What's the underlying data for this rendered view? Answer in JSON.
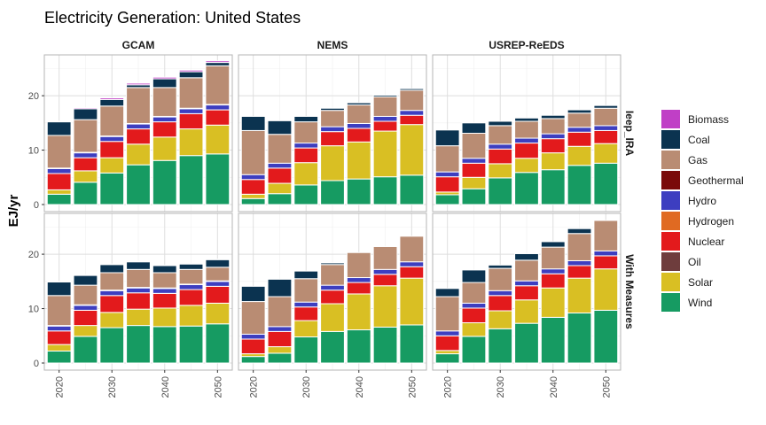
{
  "chart_data": {
    "type": "bar",
    "stacked": true,
    "title": "Electricity Generation: United States",
    "ylabel": "EJ/yr",
    "xlabel": "",
    "x": [
      2020,
      2025,
      2030,
      2035,
      2040,
      2045,
      2050
    ],
    "x_ticks": [
      "2020",
      "2030",
      "2040",
      "2050"
    ],
    "y_ticks": [
      "0",
      "10",
      "20"
    ],
    "ylim": [
      -1.3,
      27.5
    ],
    "columns": [
      "GCAM",
      "NEMS",
      "USREP-ReEDS"
    ],
    "rows": [
      "Ieep_IRA",
      "With Measures"
    ],
    "legend": {
      "position": "right"
    },
    "grid": true,
    "fuels": [
      "Biomass",
      "Coal",
      "Gas",
      "Geothermal",
      "Hydro",
      "Hydrogen",
      "Nuclear",
      "Oil",
      "Solar",
      "Wind"
    ],
    "colors": {
      "Biomass": "#c03fc6",
      "Coal": "#0b3350",
      "Gas": "#b98c73",
      "Geothermal": "#7a0a0a",
      "Hydro": "#3d3ec0",
      "Hydrogen": "#e06a22",
      "Nuclear": "#e31a1c",
      "Oil": "#6e3d3d",
      "Solar": "#d9bf23",
      "Wind": "#169b62"
    },
    "panels": [
      {
        "row": "Ieep_IRA",
        "col": "GCAM",
        "stacks": [
          {
            "Wind": 1.9,
            "Solar": 0.8,
            "Nuclear": 3.0,
            "Hydro": 0.9,
            "Biomass": 0.1,
            "Geothermal": 0.1,
            "Gas": 6.0,
            "Coal": 2.5
          },
          {
            "Wind": 4.1,
            "Solar": 2.1,
            "Nuclear": 2.4,
            "Hydro": 0.9,
            "Biomass": 0.2,
            "Geothermal": 0.1,
            "Gas": 6.0,
            "Coal": 2.0
          },
          {
            "Wind": 5.8,
            "Solar": 2.8,
            "Nuclear": 3.0,
            "Hydro": 0.9,
            "Biomass": 0.3,
            "Geothermal": 0.1,
            "Gas": 5.5,
            "Coal": 1.2
          },
          {
            "Wind": 7.3,
            "Solar": 3.8,
            "Nuclear": 2.8,
            "Hydro": 0.9,
            "Biomass": 0.3,
            "Geothermal": 0.1,
            "Gas": 6.6,
            "Coal": 0.5
          },
          {
            "Wind": 8.1,
            "Solar": 4.3,
            "Nuclear": 2.8,
            "Hydro": 0.9,
            "Biomass": 0.3,
            "Geothermal": 0.1,
            "Gas": 5.3,
            "Coal": 1.6
          },
          {
            "Wind": 9.0,
            "Solar": 4.9,
            "Nuclear": 2.8,
            "Hydro": 0.9,
            "Biomass": 0.3,
            "Geothermal": 0.1,
            "Gas": 5.6,
            "Coal": 1.1
          },
          {
            "Wind": 9.3,
            "Solar": 5.3,
            "Nuclear": 2.8,
            "Hydro": 0.9,
            "Biomass": 0.3,
            "Geothermal": 0.1,
            "Gas": 7.1,
            "Coal": 0.6
          }
        ]
      },
      {
        "row": "Ieep_IRA",
        "col": "NEMS",
        "stacks": [
          {
            "Wind": 1.1,
            "Solar": 0.8,
            "Nuclear": 2.7,
            "Hydro": 0.9,
            "Gas": 8.1,
            "Coal": 2.6
          },
          {
            "Wind": 2.0,
            "Solar": 1.9,
            "Nuclear": 2.8,
            "Hydro": 0.9,
            "Gas": 5.3,
            "Coal": 2.5
          },
          {
            "Wind": 3.6,
            "Solar": 4.1,
            "Nuclear": 2.7,
            "Hydro": 0.9,
            "Gas": 3.9,
            "Coal": 1.0
          },
          {
            "Wind": 4.4,
            "Solar": 6.4,
            "Nuclear": 2.6,
            "Hydro": 0.9,
            "Gas": 3.0,
            "Coal": 0.4
          },
          {
            "Wind": 4.7,
            "Solar": 6.8,
            "Nuclear": 2.5,
            "Hydro": 0.9,
            "Gas": 3.4,
            "Coal": 0.4
          },
          {
            "Wind": 5.1,
            "Solar": 8.4,
            "Nuclear": 1.8,
            "Hydro": 0.9,
            "Gas": 3.6,
            "Coal": 0.3
          },
          {
            "Wind": 5.4,
            "Solar": 9.3,
            "Nuclear": 1.7,
            "Hydro": 0.9,
            "Gas": 3.7,
            "Coal": 0.3
          }
        ]
      },
      {
        "row": "Ieep_IRA",
        "col": "USREP-ReEDS",
        "stacks": [
          {
            "Wind": 1.8,
            "Solar": 0.5,
            "Nuclear": 2.8,
            "Hydro": 0.9,
            "Gas": 4.8,
            "Coal": 2.9
          },
          {
            "Wind": 2.9,
            "Solar": 2.1,
            "Nuclear": 2.6,
            "Hydro": 0.9,
            "Gas": 4.6,
            "Coal": 1.9
          },
          {
            "Wind": 4.9,
            "Solar": 2.6,
            "Nuclear": 2.7,
            "Hydro": 0.9,
            "Gas": 3.4,
            "Coal": 0.8
          },
          {
            "Wind": 5.9,
            "Solar": 2.6,
            "Nuclear": 2.8,
            "Hydro": 0.9,
            "Gas": 3.1,
            "Coal": 0.6
          },
          {
            "Wind": 6.4,
            "Solar": 3.1,
            "Nuclear": 2.6,
            "Hydro": 0.9,
            "Gas": 2.8,
            "Coal": 0.6
          },
          {
            "Wind": 7.2,
            "Solar": 3.5,
            "Nuclear": 2.6,
            "Hydro": 0.9,
            "Gas": 2.6,
            "Coal": 0.6
          },
          {
            "Wind": 7.6,
            "Solar": 3.6,
            "Nuclear": 2.4,
            "Hydro": 0.9,
            "Gas": 3.2,
            "Coal": 0.5
          }
        ]
      },
      {
        "row": "With Measures",
        "col": "GCAM",
        "stacks": [
          {
            "Wind": 2.2,
            "Solar": 1.2,
            "Nuclear": 2.5,
            "Hydro": 0.9,
            "Biomass": 0.1,
            "Geothermal": 0.1,
            "Gas": 5.5,
            "Coal": 2.5
          },
          {
            "Wind": 4.9,
            "Solar": 2.0,
            "Nuclear": 2.8,
            "Hydro": 0.9,
            "Biomass": 0.1,
            "Geothermal": 0.1,
            "Gas": 3.6,
            "Coal": 1.8
          },
          {
            "Wind": 6.5,
            "Solar": 2.8,
            "Nuclear": 3.1,
            "Hydro": 0.9,
            "Biomass": 0.1,
            "Geothermal": 0.1,
            "Gas": 3.2,
            "Coal": 1.5
          },
          {
            "Wind": 6.9,
            "Solar": 3.0,
            "Nuclear": 3.0,
            "Hydro": 0.9,
            "Biomass": 0.1,
            "Geothermal": 0.1,
            "Gas": 3.3,
            "Coal": 1.4
          },
          {
            "Wind": 6.7,
            "Solar": 3.4,
            "Nuclear": 2.7,
            "Hydro": 0.9,
            "Biomass": 0.1,
            "Geothermal": 0.1,
            "Gas": 2.8,
            "Coal": 1.3
          },
          {
            "Wind": 6.8,
            "Solar": 3.8,
            "Nuclear": 2.9,
            "Hydro": 0.9,
            "Biomass": 0.1,
            "Geothermal": 0.1,
            "Gas": 2.7,
            "Coal": 1.0
          },
          {
            "Wind": 7.2,
            "Solar": 3.8,
            "Nuclear": 3.1,
            "Hydro": 0.9,
            "Biomass": 0.1,
            "Geothermal": 0.1,
            "Gas": 2.5,
            "Coal": 1.4
          }
        ]
      },
      {
        "row": "With Measures",
        "col": "NEMS",
        "stacks": [
          {
            "Wind": 1.2,
            "Solar": 0.5,
            "Nuclear": 2.7,
            "Hydro": 0.9,
            "Gas": 6.0,
            "Coal": 2.8
          },
          {
            "Wind": 1.8,
            "Solar": 1.2,
            "Nuclear": 2.8,
            "Hydro": 0.9,
            "Gas": 5.5,
            "Coal": 3.2
          },
          {
            "Wind": 4.8,
            "Solar": 3.0,
            "Nuclear": 2.5,
            "Hydro": 0.9,
            "Gas": 4.3,
            "Coal": 1.4
          },
          {
            "Wind": 5.8,
            "Solar": 5.1,
            "Nuclear": 2.5,
            "Hydro": 0.9,
            "Gas": 3.8,
            "Coal": 0.3
          },
          {
            "Wind": 6.1,
            "Solar": 6.6,
            "Nuclear": 2.1,
            "Hydro": 0.9,
            "Gas": 4.6,
            "Coal": 0.0
          },
          {
            "Wind": 6.6,
            "Solar": 7.6,
            "Nuclear": 2.1,
            "Hydro": 0.9,
            "Gas": 4.2,
            "Coal": 0.0
          },
          {
            "Wind": 7.0,
            "Solar": 8.6,
            "Nuclear": 2.1,
            "Hydro": 0.9,
            "Gas": 4.7,
            "Coal": 0.0
          }
        ]
      },
      {
        "row": "With Measures",
        "col": "USREP-ReEDS",
        "stacks": [
          {
            "Wind": 1.7,
            "Solar": 0.6,
            "Nuclear": 2.7,
            "Hydro": 0.9,
            "Gas": 6.3,
            "Coal": 1.5
          },
          {
            "Wind": 4.9,
            "Solar": 2.5,
            "Nuclear": 2.7,
            "Hydro": 0.9,
            "Gas": 3.8,
            "Coal": 2.3
          },
          {
            "Wind": 6.3,
            "Solar": 3.3,
            "Nuclear": 2.8,
            "Hydro": 0.9,
            "Gas": 4.1,
            "Coal": 0.6
          },
          {
            "Wind": 7.3,
            "Solar": 4.3,
            "Nuclear": 2.6,
            "Hydro": 0.9,
            "Gas": 3.8,
            "Coal": 1.2
          },
          {
            "Wind": 8.4,
            "Solar": 5.4,
            "Nuclear": 2.6,
            "Hydro": 0.9,
            "Gas": 4.0,
            "Coal": 1.0
          },
          {
            "Wind": 9.2,
            "Solar": 6.4,
            "Nuclear": 2.3,
            "Hydro": 0.9,
            "Gas": 5.0,
            "Coal": 0.9
          },
          {
            "Wind": 9.7,
            "Solar": 7.6,
            "Nuclear": 2.4,
            "Hydro": 0.9,
            "Gas": 5.6,
            "Coal": 0.0
          }
        ]
      }
    ]
  }
}
